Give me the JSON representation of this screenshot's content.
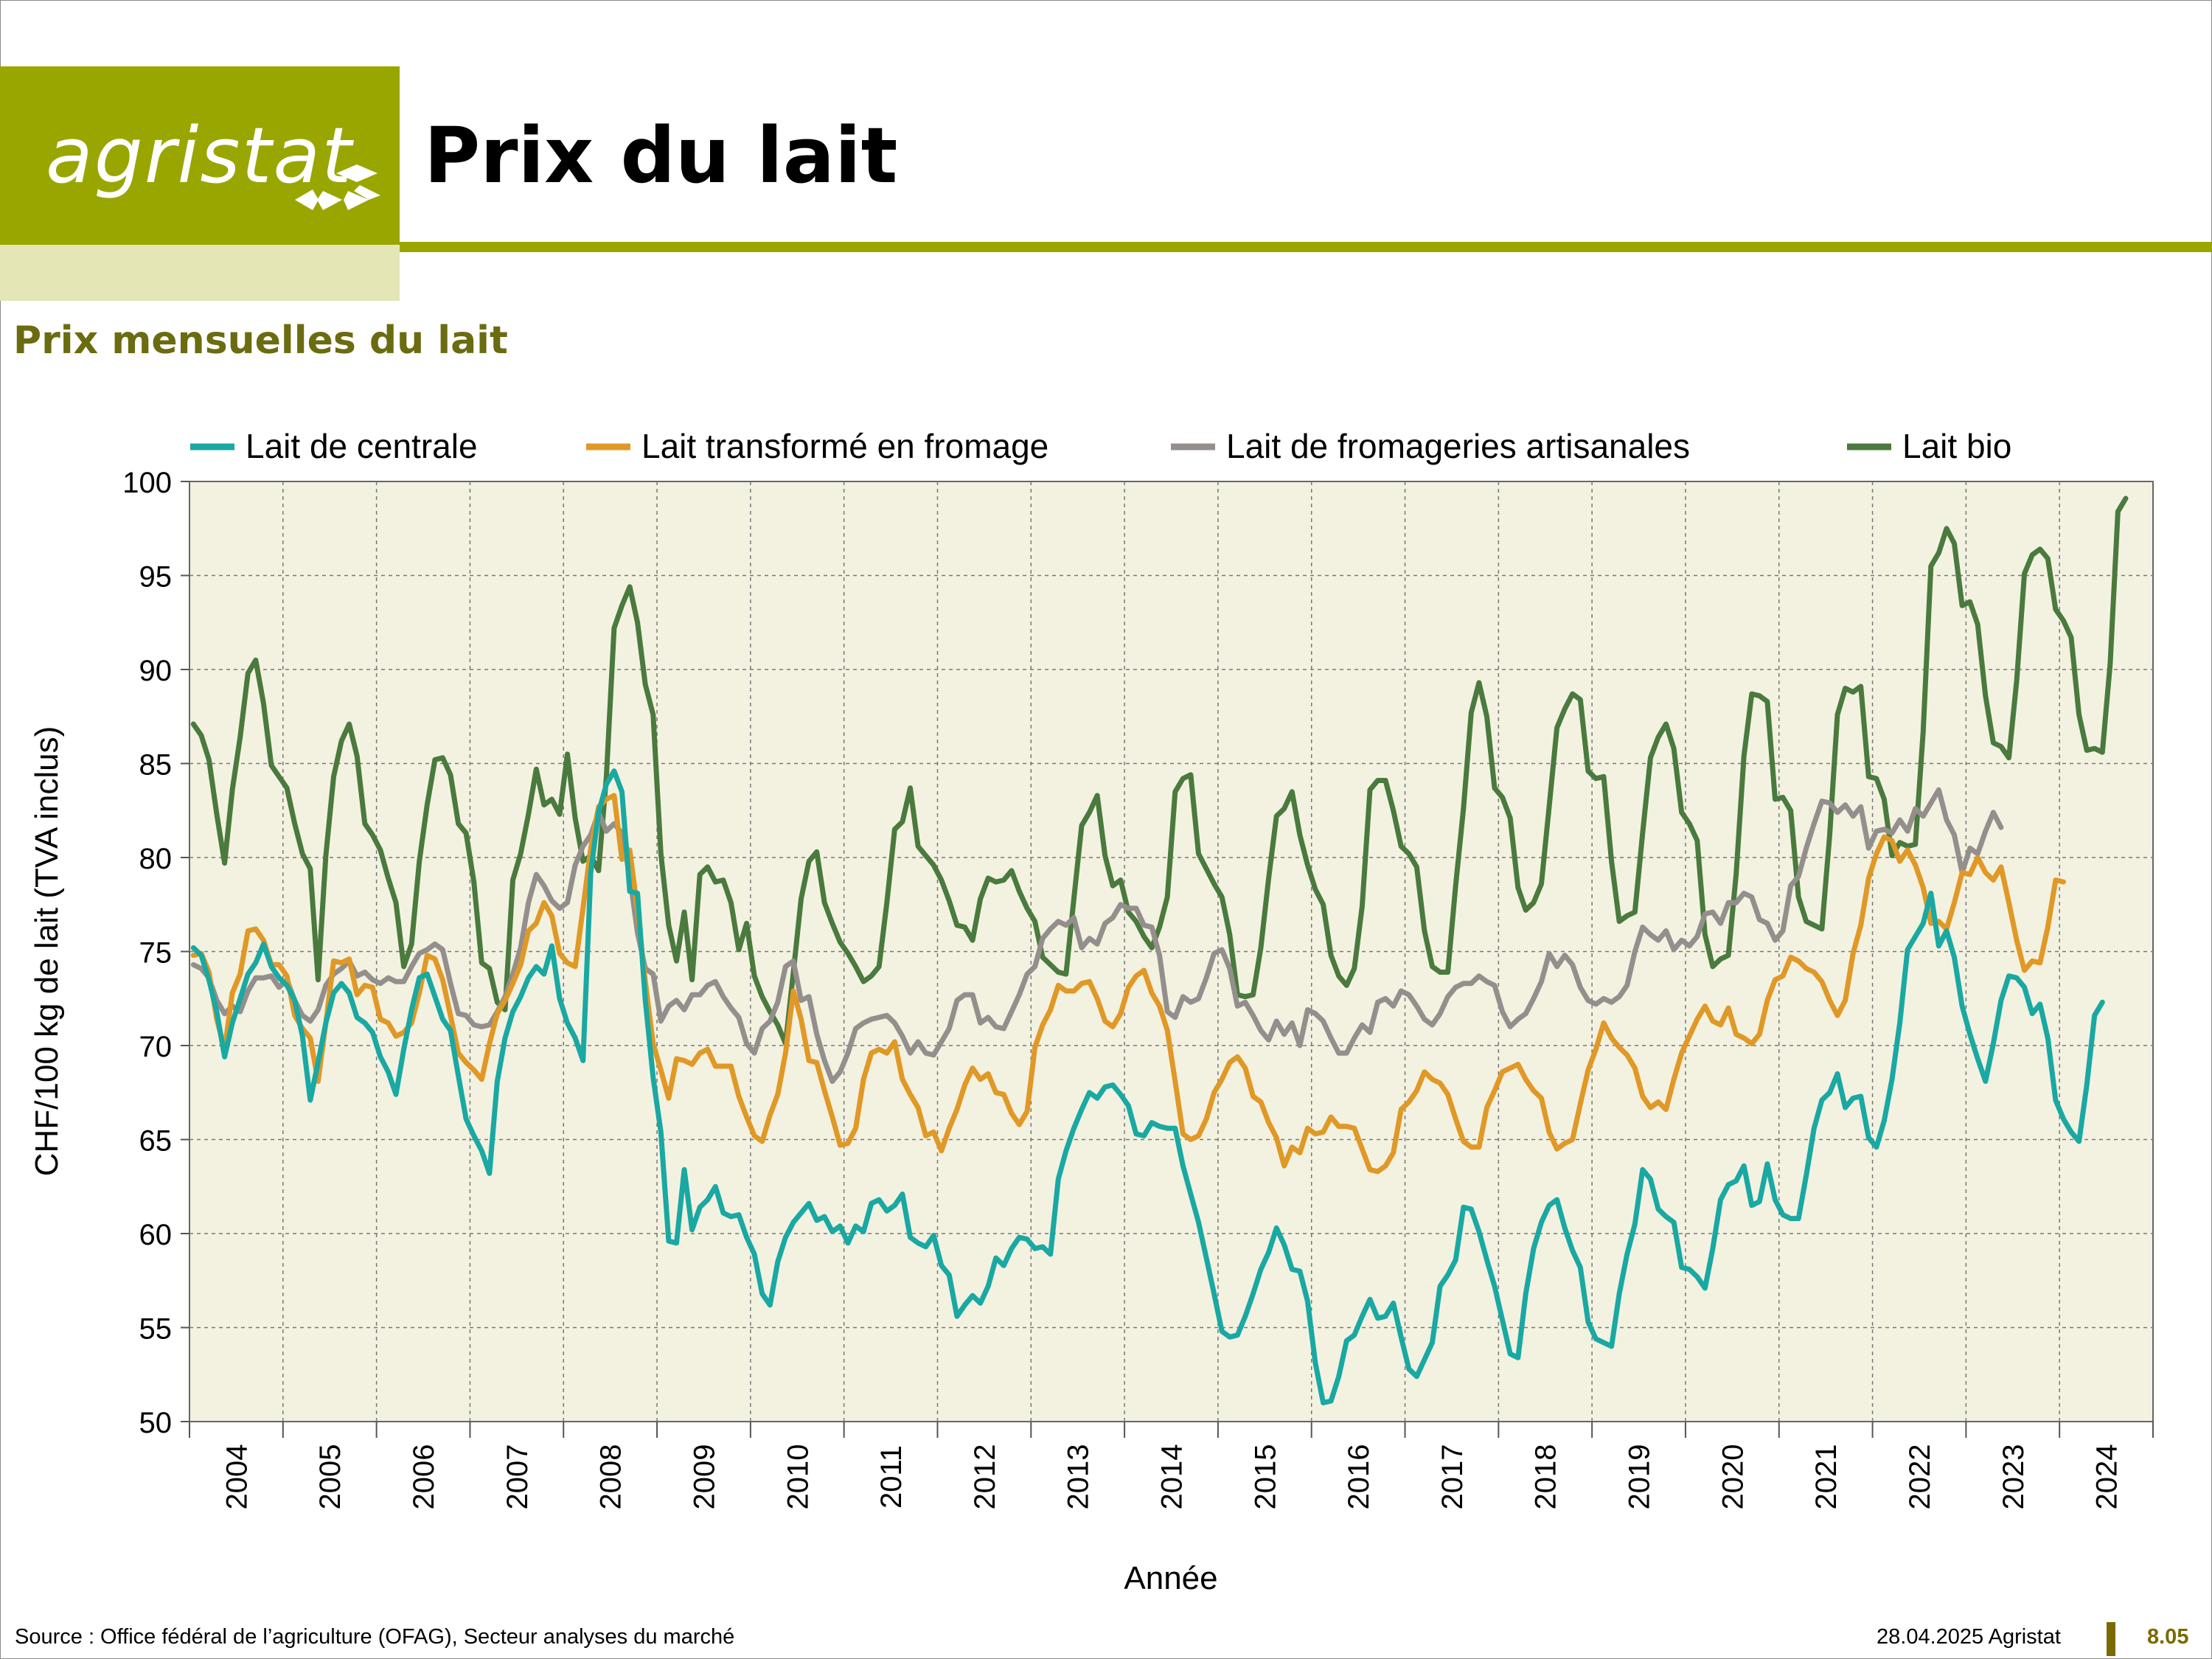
{
  "header": {
    "logo_text": "agristat",
    "title": "Prix du lait",
    "subtitle": "Prix mensuelles du lait"
  },
  "footer": {
    "source": "Source : Office fédéral de l’agriculture (OFAG), Secteur analyses du marché",
    "date": "28.04.2025 Agristat",
    "page": "8.05"
  },
  "colors": {
    "brand": "#9aa600",
    "plot_background": "#f3f2e1",
    "centrale": "#1aa8a2",
    "fromage": "#e09826",
    "artisanales": "#948e8c",
    "bio": "#4a7a3e"
  },
  "chart_data": {
    "type": "line",
    "title": "Prix mensuelles du lait",
    "xlabel": "Année",
    "ylabel": "CHF/100 kg de lait (TVA inclus)",
    "ylim": [
      50,
      100
    ],
    "yticks": [
      100,
      95,
      90,
      85,
      80,
      75,
      70,
      65,
      60,
      55,
      50
    ],
    "x_ticks": [
      "2004",
      "2005",
      "2006",
      "2007",
      "2008",
      "2009",
      "2010",
      "2011",
      "2012",
      "2013",
      "2014",
      "2015",
      "2016",
      "2017",
      "2018",
      "2019",
      "2020",
      "2021",
      "2022",
      "2023",
      "2024"
    ],
    "grid": true,
    "legend": "top",
    "x_start": "2004-01",
    "x_end": "2024-09",
    "series": [
      {
        "name": "Lait de centrale",
        "values": [
          75.2,
          74.8,
          73.5,
          71.8,
          69.4,
          71.2,
          72.5,
          73.8,
          74.4,
          75.4,
          74.2,
          73.6,
          73.2,
          72.4,
          70.5,
          67.1,
          69.1,
          71.2,
          72.8,
          73.3,
          72.8,
          71.5,
          71.2,
          70.7,
          69.4,
          68.6,
          67.4,
          69.8,
          71.9,
          73.6,
          73.8,
          72.6,
          71.4,
          70.8,
          68.4,
          66.1,
          65.2,
          64.4,
          63.2,
          68.1,
          70.4,
          71.8,
          72.6,
          73.6,
          74.2,
          73.8,
          75.3,
          72.5,
          71.2,
          70.4,
          69.2,
          79.2,
          82.4,
          83.9,
          84.6,
          83.5,
          78.2,
          78.1,
          72.4,
          68.3,
          65.4,
          59.6,
          59.5,
          63.4,
          60.2,
          61.4,
          61.8,
          62.5,
          61.1,
          60.9,
          61.0,
          59.8,
          58.9,
          56.8,
          56.2,
          58.5,
          59.8,
          60.6,
          61.1,
          61.6,
          60.7,
          60.9,
          60.1,
          60.4,
          59.5,
          60.4,
          60.1,
          61.6,
          61.8,
          61.2,
          61.5,
          62.1,
          59.8,
          59.5,
          59.3,
          59.9,
          58.3,
          57.8,
          55.6,
          56.2,
          56.7,
          56.3,
          57.2,
          58.7,
          58.3,
          59.2,
          59.8,
          59.7,
          59.2,
          59.3,
          58.9,
          62.9,
          64.4,
          65.6,
          66.6,
          67.5,
          67.2,
          67.8,
          67.9,
          67.4,
          66.8,
          65.3,
          65.2,
          65.9,
          65.7,
          65.6,
          65.6,
          63.6,
          62.1,
          60.6,
          58.7,
          56.8,
          54.8,
          54.5,
          54.6,
          55.6,
          56.8,
          58.1,
          59.0,
          60.3,
          59.4,
          58.1,
          58.0,
          56.4,
          53.1,
          51.0,
          51.1,
          52.4,
          54.3,
          54.6,
          55.6,
          56.5,
          55.5,
          55.6,
          56.3,
          54.5,
          52.8,
          52.4,
          53.3,
          54.2,
          57.2,
          57.8,
          58.6,
          61.4,
          61.3,
          60.1,
          58.6,
          57.2,
          55.4,
          53.6,
          53.4,
          56.8,
          59.2,
          60.6,
          61.5,
          61.8,
          60.3,
          59.1,
          58.2,
          55.3,
          54.4,
          54.2,
          54.0,
          56.8,
          58.9,
          60.5,
          63.4,
          62.9,
          61.3,
          60.9,
          60.6,
          58.2,
          58.1,
          57.7,
          57.1,
          59.2,
          61.8,
          62.6,
          62.8,
          63.6,
          61.5,
          61.7,
          63.7,
          61.8,
          61.0,
          60.8,
          60.8,
          63.1,
          65.6,
          67.1,
          67.5,
          68.5,
          66.7,
          67.2,
          67.3,
          65.1,
          64.6,
          66.0,
          68.2,
          71.2,
          75.1,
          75.8,
          76.5,
          78.1,
          75.3,
          76.1,
          74.7,
          72.1,
          70.6,
          69.3,
          68.1,
          70.1,
          72.4,
          73.7,
          73.6,
          73.1,
          71.7,
          72.2,
          70.4,
          67.1,
          66.1,
          65.4,
          64.9,
          67.9,
          71.6,
          72.3
        ]
      },
      {
        "name": "Lait transformé en fromage",
        "values": [
          74.8,
          74.9,
          73.9,
          71.4,
          69.8,
          72.8,
          73.8,
          76.1,
          76.2,
          75.6,
          74.3,
          74.3,
          73.7,
          71.6,
          70.9,
          70.4,
          68.1,
          71.2,
          74.5,
          74.4,
          74.6,
          72.7,
          73.2,
          73.1,
          71.4,
          71.2,
          70.5,
          70.7,
          71.2,
          72.8,
          74.8,
          74.6,
          73.5,
          71.6,
          69.6,
          69.1,
          68.7,
          68.2,
          70.1,
          71.7,
          72.4,
          73.3,
          74.3,
          76.1,
          76.5,
          77.6,
          76.9,
          74.9,
          74.4,
          74.2,
          77.3,
          80.5,
          82.7,
          83.1,
          83.3,
          79.9,
          80.4,
          77.2,
          73.4,
          70.1,
          68.7,
          67.2,
          69.3,
          69.2,
          69.0,
          69.6,
          69.8,
          68.9,
          68.9,
          68.9,
          67.3,
          66.2,
          65.2,
          64.9,
          66.3,
          67.4,
          69.6,
          72.9,
          71.4,
          69.2,
          69.1,
          67.6,
          66.2,
          64.7,
          64.8,
          65.6,
          68.2,
          69.6,
          69.8,
          69.6,
          70.2,
          68.2,
          67.4,
          66.7,
          65.2,
          65.4,
          64.4,
          65.6,
          66.6,
          67.9,
          68.8,
          68.2,
          68.5,
          67.5,
          67.4,
          66.4,
          65.8,
          66.5,
          69.9,
          71.1,
          71.9,
          73.2,
          72.9,
          72.9,
          73.3,
          73.4,
          72.5,
          71.3,
          71.0,
          71.7,
          73.1,
          73.7,
          74.0,
          72.8,
          72.1,
          70.8,
          68.1,
          65.3,
          65.0,
          65.2,
          66.1,
          67.5,
          68.2,
          69.1,
          69.4,
          68.8,
          67.3,
          67.0,
          65.9,
          65.1,
          63.6,
          64.6,
          64.3,
          65.6,
          65.3,
          65.4,
          66.2,
          65.7,
          65.7,
          65.6,
          64.5,
          63.4,
          63.3,
          63.6,
          64.3,
          66.6,
          67.0,
          67.6,
          68.6,
          68.2,
          68.0,
          67.4,
          66.1,
          64.9,
          64.6,
          64.6,
          66.7,
          67.6,
          68.6,
          68.8,
          69.0,
          68.2,
          67.6,
          67.2,
          65.4,
          64.5,
          64.8,
          65.0,
          66.9,
          68.7,
          69.8,
          71.2,
          70.4,
          69.9,
          69.5,
          68.8,
          67.3,
          66.7,
          67.0,
          66.6,
          68.2,
          69.6,
          70.5,
          71.4,
          72.1,
          71.3,
          71.1,
          72.0,
          70.6,
          70.4,
          70.1,
          70.6,
          72.4,
          73.5,
          73.7,
          74.7,
          74.5,
          74.1,
          73.9,
          73.4,
          72.4,
          71.6,
          72.4,
          74.9,
          76.4,
          78.9,
          80.2,
          81.1,
          80.9,
          79.8,
          80.4,
          79.6,
          78.4,
          76.5,
          76.6,
          76.2,
          77.6,
          79.2,
          79.1,
          80.0,
          79.2,
          78.8,
          79.5,
          77.6,
          75.6,
          74.0,
          74.5,
          74.4,
          76.3,
          78.8,
          78.7
        ]
      },
      {
        "name": "Lait de fromageries artisanales",
        "values": [
          74.3,
          74.1,
          73.6,
          72.4,
          71.7,
          72.1,
          71.8,
          72.9,
          73.6,
          73.6,
          73.7,
          73.1,
          73.5,
          72.4,
          71.6,
          71.3,
          71.9,
          73.2,
          73.8,
          74.1,
          74.5,
          73.7,
          73.9,
          73.5,
          73.3,
          73.6,
          73.4,
          73.4,
          74.2,
          74.9,
          75.1,
          75.4,
          75.1,
          73.3,
          71.7,
          71.6,
          71.1,
          71.0,
          71.1,
          71.8,
          72.6,
          73.8,
          75.2,
          77.6,
          79.1,
          78.5,
          77.7,
          77.3,
          77.6,
          79.6,
          80.6,
          81.2,
          82.4,
          81.4,
          81.8,
          81.3,
          79.0,
          76.0,
          74.1,
          73.8,
          71.3,
          72.1,
          72.4,
          71.9,
          72.7,
          72.7,
          73.2,
          73.4,
          72.6,
          72.0,
          71.5,
          70.1,
          69.6,
          70.9,
          71.3,
          72.3,
          74.2,
          74.5,
          72.4,
          72.6,
          70.6,
          69.2,
          68.1,
          68.6,
          69.6,
          70.9,
          71.2,
          71.4,
          71.5,
          71.6,
          71.2,
          70.5,
          69.6,
          70.2,
          69.6,
          69.5,
          70.2,
          70.9,
          72.4,
          72.7,
          72.7,
          71.2,
          71.5,
          71.0,
          70.9,
          71.8,
          72.7,
          73.8,
          74.2,
          75.7,
          76.2,
          76.6,
          76.4,
          76.8,
          75.2,
          75.7,
          75.4,
          76.5,
          76.8,
          77.5,
          77.3,
          77.3,
          76.4,
          76.3,
          74.8,
          71.8,
          71.5,
          72.6,
          72.3,
          72.5,
          73.6,
          74.9,
          75.1,
          74.1,
          72.1,
          72.3,
          71.6,
          70.8,
          70.3,
          71.3,
          70.6,
          71.2,
          70.0,
          71.9,
          71.7,
          71.3,
          70.4,
          69.6,
          69.6,
          70.4,
          71.1,
          70.7,
          72.3,
          72.5,
          72.1,
          72.9,
          72.7,
          72.1,
          71.4,
          71.1,
          71.7,
          72.6,
          73.1,
          73.3,
          73.3,
          73.7,
          73.4,
          73.2,
          71.8,
          71.0,
          71.4,
          71.7,
          72.5,
          73.4,
          74.9,
          74.2,
          74.8,
          74.3,
          73.1,
          72.4,
          72.2,
          72.5,
          72.3,
          72.6,
          73.2,
          75.0,
          76.3,
          75.9,
          75.6,
          76.1,
          75.1,
          75.6,
          75.3,
          75.8,
          77.0,
          77.1,
          76.5,
          77.6,
          77.6,
          78.1,
          77.9,
          76.7,
          76.5,
          75.6,
          76.1,
          78.5,
          79.0,
          80.5,
          81.8,
          83.0,
          82.9,
          82.4,
          82.8,
          82.2,
          82.7,
          80.5,
          81.4,
          81.5,
          81.3,
          82.0,
          81.4,
          82.6,
          82.2,
          82.9,
          83.6,
          82.0,
          81.2,
          79.2,
          80.5,
          80.2,
          81.4,
          82.4,
          81.6
        ]
      },
      {
        "name": "Lait bio",
        "values": [
          87.1,
          86.5,
          85.2,
          82.3,
          79.7,
          83.6,
          86.4,
          89.8,
          90.5,
          88.2,
          84.9,
          84.3,
          83.7,
          81.8,
          80.2,
          79.4,
          73.5,
          80.1,
          84.3,
          86.2,
          87.1,
          85.4,
          81.8,
          81.2,
          80.4,
          78.9,
          77.6,
          74.2,
          75.4,
          79.8,
          82.8,
          85.2,
          85.3,
          84.4,
          81.8,
          81.3,
          78.7,
          74.4,
          74.1,
          72.3,
          71.9,
          78.8,
          80.2,
          82.3,
          84.7,
          82.8,
          83.1,
          82.3,
          85.5,
          82.1,
          79.8,
          80.1,
          79.3,
          84.3,
          92.2,
          93.4,
          94.4,
          92.5,
          89.2,
          87.6,
          80.2,
          76.4,
          74.5,
          77.1,
          73.5,
          79.1,
          79.5,
          78.7,
          78.8,
          77.6,
          75.1,
          76.5,
          73.7,
          72.6,
          71.8,
          71.1,
          70.1,
          73.9,
          77.8,
          79.8,
          80.3,
          77.6,
          76.5,
          75.5,
          74.9,
          74.2,
          73.4,
          73.7,
          74.2,
          77.6,
          81.5,
          81.9,
          83.7,
          80.6,
          80.1,
          79.6,
          78.8,
          77.7,
          76.4,
          76.3,
          75.6,
          77.8,
          78.9,
          78.7,
          78.8,
          79.3,
          78.2,
          77.3,
          76.6,
          74.7,
          74.3,
          73.9,
          73.8,
          77.8,
          81.7,
          82.4,
          83.3,
          80.1,
          78.5,
          78.8,
          77.1,
          76.6,
          75.8,
          75.2,
          76.3,
          77.9,
          83.5,
          84.2,
          84.4,
          80.2,
          79.4,
          78.6,
          77.9,
          75.9,
          72.7,
          72.6,
          72.7,
          75.2,
          78.9,
          82.2,
          82.6,
          83.5,
          81.2,
          79.6,
          78.3,
          77.5,
          74.8,
          73.7,
          73.2,
          74.1,
          77.4,
          83.6,
          84.1,
          84.1,
          82.5,
          80.6,
          80.2,
          79.5,
          76.1,
          74.2,
          73.9,
          73.9,
          78.5,
          82.6,
          87.7,
          89.3,
          87.5,
          83.7,
          83.2,
          82.1,
          78.4,
          77.2,
          77.6,
          78.6,
          82.7,
          86.9,
          87.9,
          88.7,
          88.4,
          84.6,
          84.2,
          84.3,
          79.8,
          76.6,
          76.9,
          77.1,
          81.3,
          85.3,
          86.4,
          87.1,
          85.8,
          82.4,
          81.8,
          80.9,
          75.9,
          74.2,
          74.6,
          74.8,
          79.1,
          85.4,
          88.7,
          88.6,
          88.3,
          83.1,
          83.2,
          82.5,
          77.9,
          76.6,
          76.4,
          76.2,
          81.2,
          87.6,
          89.0,
          88.8,
          89.1,
          84.3,
          84.2,
          83.1,
          80.1,
          80.8,
          80.6,
          80.7,
          86.7,
          95.5,
          96.2,
          97.5,
          96.7,
          93.4,
          93.6,
          92.4,
          88.6,
          86.1,
          85.9,
          85.3,
          89.4,
          95.1,
          96.1,
          96.4,
          95.9,
          93.2,
          92.6,
          91.7,
          87.6,
          85.7,
          85.8,
          85.6,
          90.3,
          98.4,
          99.1
        ]
      }
    ]
  }
}
